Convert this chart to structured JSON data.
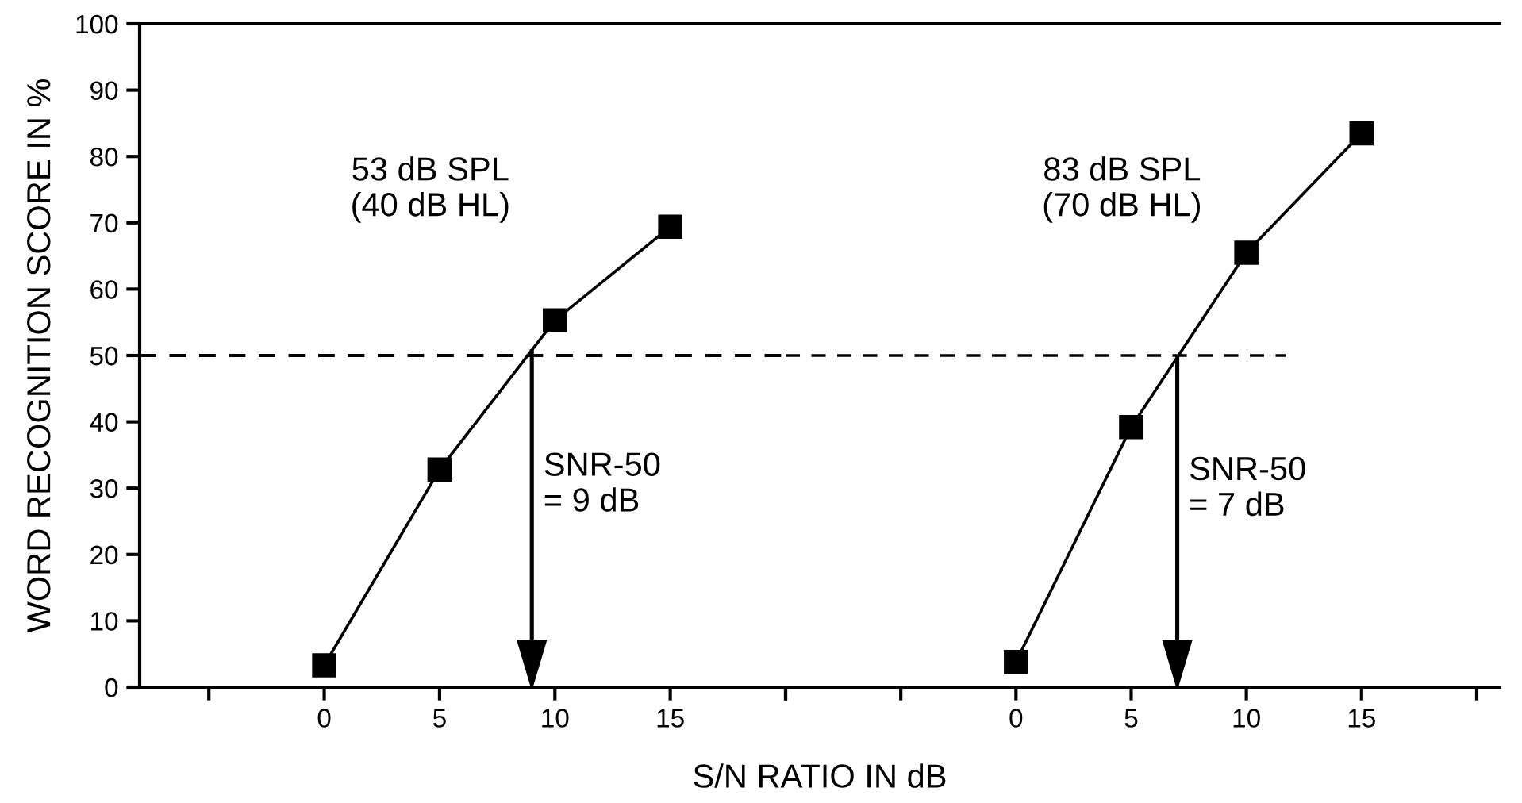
{
  "chart_data": [
    {
      "type": "line",
      "ylabel": "WORD RECOGNITION SCORE IN %",
      "xlabel": "S/N RATIO IN dB",
      "xlim": [
        -8,
        20
      ],
      "xticks": [
        {
          "value": -5,
          "label": null
        },
        0,
        5,
        10,
        15,
        {
          "value": 20,
          "label": null
        }
      ],
      "ylim": [
        0,
        100
      ],
      "yticks": [
        0,
        10,
        20,
        30,
        40,
        50,
        60,
        70,
        80,
        90,
        100
      ],
      "marker": "square",
      "grid": false,
      "series": [
        {
          "name": "53 dB SPL\n(40 dB HL)",
          "color": "#000000",
          "x": [
            0,
            5,
            10,
            15
          ],
          "values": [
            3.3,
            32.8,
            55.3,
            69.4
          ]
        }
      ],
      "ref_lines": [
        {
          "axis": "y",
          "value": 50,
          "label": null,
          "color": "#000000",
          "line_style": "dashed"
        },
        {
          "axis": "x",
          "value": 9,
          "label": "SNR-50\n= 9 dB",
          "color": "#000000"
        }
      ]
    },
    {
      "type": "line",
      "xlim": [
        -10,
        21
      ],
      "tick_labels": "x",
      "xticks": [
        {
          "value": -10,
          "label": null
        },
        {
          "value": -5,
          "label": null
        },
        0,
        5,
        10,
        15,
        {
          "value": 20,
          "label": null
        }
      ],
      "ylim": [
        0,
        100
      ],
      "marker": "square",
      "grid": false,
      "series": [
        {
          "name": "83 dB SPL\n(70 dB HL)",
          "color": "#000000",
          "x": [
            0,
            5,
            10,
            15
          ],
          "values": [
            3.8,
            39.2,
            65.5,
            83.5
          ]
        },
        {
          "type": "line",
          "color": "#000000",
          "x": [
            -10,
            11.7
          ],
          "values": [
            50,
            50
          ],
          "marker": "none",
          "line_style": "dashed"
        }
      ],
      "ref_lines": [
        {
          "axis": "x",
          "value": 7,
          "label": "SNR-50\n= 7 dB",
          "color": "#000000"
        }
      ]
    }
  ]
}
